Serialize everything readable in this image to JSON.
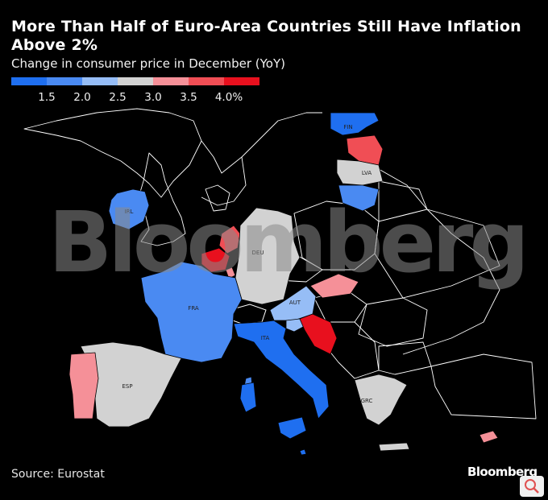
{
  "title": "More Than Half of Euro-Area Countries Still Have Inflation Above 2%",
  "subtitle": "Change in consumer price in December (YoY)",
  "legend": {
    "colors": [
      "#1f6ff0",
      "#4a8af2",
      "#96bdf6",
      "#d2d2d2",
      "#f59098",
      "#f04e55",
      "#e8101e"
    ],
    "ticks": [
      "1.5",
      "2.0",
      "2.5",
      "3.0",
      "3.5",
      "4.0%"
    ]
  },
  "colors": {
    "bin_1": "#1f6ff0",
    "bin_2": "#4a8af2",
    "bin_3": "#96bdf6",
    "bin_4": "#d2d2d2",
    "bin_5": "#f59098",
    "bin_6": "#f04e55",
    "bin_7": "#e8101e",
    "non_euro": "#000000",
    "border": "#ffffff"
  },
  "labels": {
    "fin": "FIN",
    "lva": "LVA",
    "irl": "IRL",
    "deu": "DEU",
    "fra": "FRA",
    "aut": "AUT",
    "ita": "ITA",
    "esp": "ESP",
    "grc": "GRC"
  },
  "watermark": "Bloomberg",
  "source": "Source: Eurostat",
  "brand": "Bloomberg"
}
